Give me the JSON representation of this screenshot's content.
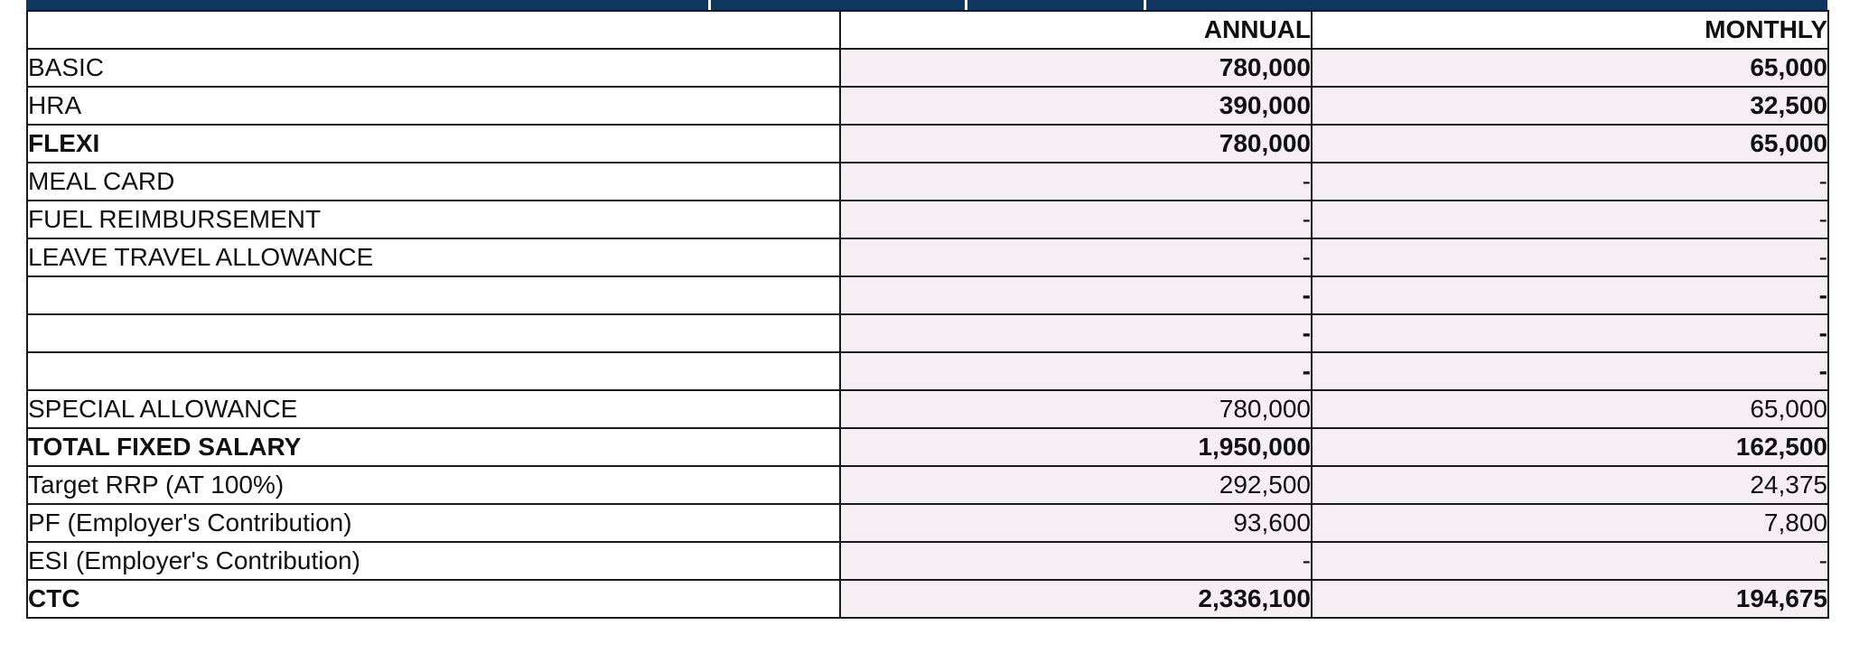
{
  "columns": {
    "annual": "ANNUAL",
    "monthly": "MONTHLY"
  },
  "rows": [
    {
      "label": "BASIC",
      "annual": "780,000",
      "monthly": "65,000",
      "label_bold": false,
      "value_bold": true
    },
    {
      "label": "HRA",
      "annual": "390,000",
      "monthly": "32,500",
      "label_bold": false,
      "value_bold": true
    },
    {
      "label": "FLEXI",
      "annual": "780,000",
      "monthly": "65,000",
      "label_bold": true,
      "value_bold": true
    },
    {
      "label": "MEAL CARD",
      "annual": "-",
      "monthly": "-",
      "label_bold": false,
      "value_bold": false
    },
    {
      "label": "FUEL REIMBURSEMENT",
      "annual": "-",
      "monthly": "-",
      "label_bold": false,
      "value_bold": false
    },
    {
      "label": "LEAVE TRAVEL ALLOWANCE",
      "annual": "-",
      "monthly": "-",
      "label_bold": false,
      "value_bold": false
    },
    {
      "label": "",
      "annual": "-",
      "monthly": "-",
      "label_bold": false,
      "value_bold": true
    },
    {
      "label": "",
      "annual": "-",
      "monthly": "-",
      "label_bold": false,
      "value_bold": true
    },
    {
      "label": "",
      "annual": "-",
      "monthly": "-",
      "label_bold": false,
      "value_bold": true
    },
    {
      "label": "SPECIAL ALLOWANCE",
      "annual": "780,000",
      "monthly": "65,000",
      "label_bold": false,
      "value_bold": false
    },
    {
      "label": "TOTAL FIXED SALARY",
      "annual": "1,950,000",
      "monthly": "162,500",
      "label_bold": true,
      "value_bold": true
    },
    {
      "label": "Target RRP (AT 100%)",
      "annual": "292,500",
      "monthly": "24,375",
      "label_bold": false,
      "value_bold": false
    },
    {
      "label": "PF (Employer's Contribution)",
      "annual": "93,600",
      "monthly": "7,800",
      "label_bold": false,
      "value_bold": false
    },
    {
      "label": "ESI (Employer's Contribution)",
      "annual": "-",
      "monthly": "-",
      "label_bold": false,
      "value_bold": false
    },
    {
      "label": "CTC",
      "annual": "2,336,100",
      "monthly": "194,675",
      "label_bold": true,
      "value_bold": true
    }
  ],
  "colors": {
    "header_bar": "#0f3661",
    "value_shading": "#f5eef3",
    "border": "#1a1a1a"
  }
}
